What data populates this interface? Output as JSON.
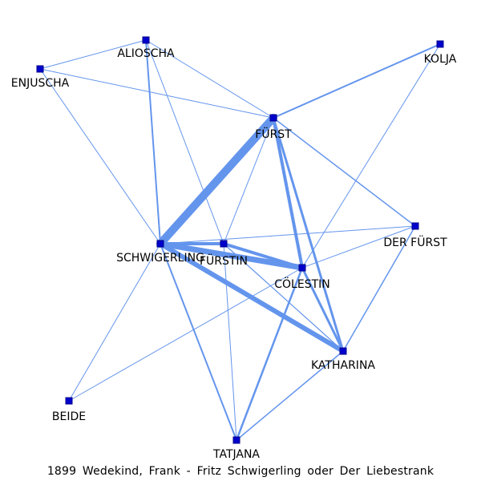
{
  "caption": "1899 Wedekind, Frank - Fritz Schwigerling oder Der Liebestrank",
  "colors": {
    "edge": "#6495ED",
    "node_fill": "#0000CD",
    "label": "#000000"
  },
  "nodes": [
    {
      "id": "ALIOSCHA",
      "label": "ALIOSCHA"
    },
    {
      "id": "ENJUSCHA",
      "label": "ENJUSCHA"
    },
    {
      "id": "KOLJA",
      "label": "KOLJA"
    },
    {
      "id": "FUERST",
      "label": "FÜRST"
    },
    {
      "id": "SCHWIGERLING",
      "label": "SCHWIGERLING"
    },
    {
      "id": "FUERSTIN",
      "label": "FÜRSTIN"
    },
    {
      "id": "DER_FUERST",
      "label": "DER FÜRST"
    },
    {
      "id": "COELESTIN",
      "label": "CÖLESTIN"
    },
    {
      "id": "KATHARINA",
      "label": "KATHARINA"
    },
    {
      "id": "BEIDE",
      "label": "BEIDE"
    },
    {
      "id": "TATJANA",
      "label": "TATJANA"
    }
  ],
  "edges": [
    {
      "source": "SCHWIGERLING",
      "target": "FUERST",
      "weight": 10
    },
    {
      "source": "SCHWIGERLING",
      "target": "COELESTIN",
      "weight": 7
    },
    {
      "source": "SCHWIGERLING",
      "target": "KATHARINA",
      "weight": 6
    },
    {
      "source": "SCHWIGERLING",
      "target": "FUERSTIN",
      "weight": 4
    },
    {
      "source": "FUERSTIN",
      "target": "COELESTIN",
      "weight": 4
    },
    {
      "source": "FUERST",
      "target": "COELESTIN",
      "weight": 4
    },
    {
      "source": "FUERST",
      "target": "KATHARINA",
      "weight": 3
    },
    {
      "source": "COELESTIN",
      "target": "KATHARINA",
      "weight": 3
    },
    {
      "source": "COELESTIN",
      "target": "TATJANA",
      "weight": 2.5
    },
    {
      "source": "FUERST",
      "target": "KOLJA",
      "weight": 2
    },
    {
      "source": "ALIOSCHA",
      "target": "SCHWIGERLING",
      "weight": 2
    },
    {
      "source": "SCHWIGERLING",
      "target": "TATJANA",
      "weight": 2
    },
    {
      "source": "FUERST",
      "target": "DER_FUERST",
      "weight": 1.5
    },
    {
      "source": "DER_FUERST",
      "target": "KATHARINA",
      "weight": 1.5
    },
    {
      "source": "KATHARINA",
      "target": "TATJANA",
      "weight": 1.5
    },
    {
      "source": "FUERSTIN",
      "target": "KATHARINA",
      "weight": 1.2
    },
    {
      "source": "ALIOSCHA",
      "target": "ENJUSCHA",
      "weight": 1
    },
    {
      "source": "ALIOSCHA",
      "target": "FUERST",
      "weight": 1
    },
    {
      "source": "ALIOSCHA",
      "target": "FUERSTIN",
      "weight": 1
    },
    {
      "source": "ENJUSCHA",
      "target": "FUERST",
      "weight": 1
    },
    {
      "source": "ENJUSCHA",
      "target": "SCHWIGERLING",
      "weight": 1
    },
    {
      "source": "KOLJA",
      "target": "COELESTIN",
      "weight": 1
    },
    {
      "source": "FUERST",
      "target": "FUERSTIN",
      "weight": 1
    },
    {
      "source": "SCHWIGERLING",
      "target": "DER_FUERST",
      "weight": 1
    },
    {
      "source": "DER_FUERST",
      "target": "COELESTIN",
      "weight": 1
    },
    {
      "source": "SCHWIGERLING",
      "target": "BEIDE",
      "weight": 1
    },
    {
      "source": "BEIDE",
      "target": "COELESTIN",
      "weight": 1
    },
    {
      "source": "FUERSTIN",
      "target": "TATJANA",
      "weight": 1
    }
  ]
}
